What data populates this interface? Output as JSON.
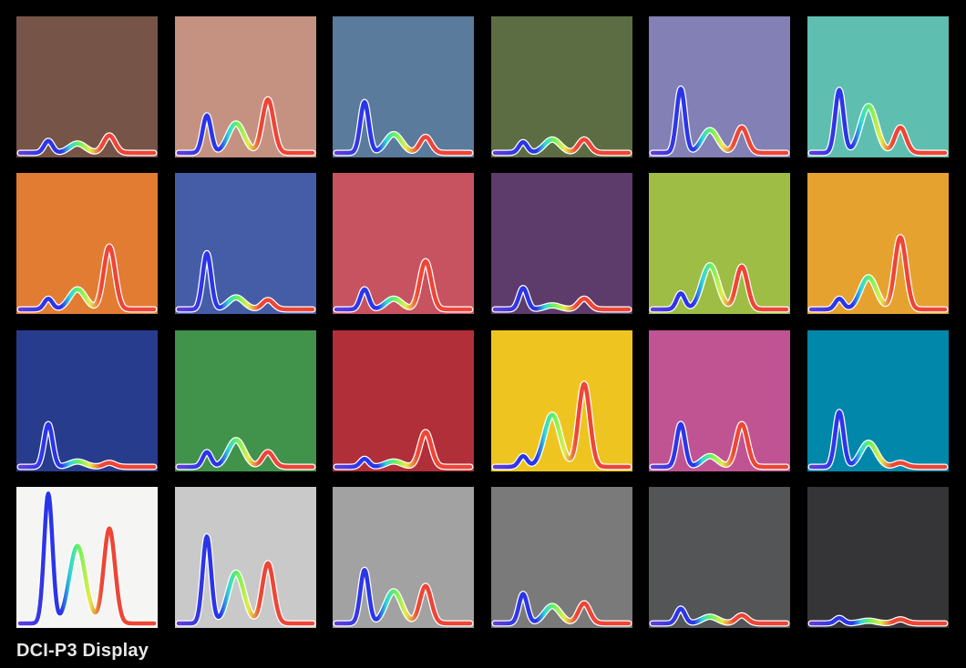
{
  "caption": "DCI-P3 Display",
  "spectrum_colors": {
    "blue": "#2b35e8",
    "cyan": "#2fd8d8",
    "green": "#66f25a",
    "yellow": "#e6ec4a",
    "red": "#ee4536",
    "outline": "#ffffff"
  },
  "swatches": [
    {
      "color": "#765447",
      "peaks": {
        "blue": 0.09,
        "green": 0.07,
        "red": 0.13
      }
    },
    {
      "color": "#c59281",
      "peaks": {
        "blue": 0.28,
        "green": 0.22,
        "red": 0.4
      }
    },
    {
      "color": "#5a7b9b",
      "peaks": {
        "blue": 0.38,
        "green": 0.14,
        "red": 0.12
      }
    },
    {
      "color": "#5c6d43",
      "peaks": {
        "blue": 0.08,
        "green": 0.1,
        "red": 0.1
      }
    },
    {
      "color": "#8280b4",
      "peaks": {
        "blue": 0.48,
        "green": 0.17,
        "red": 0.19
      }
    },
    {
      "color": "#5ebfb0",
      "peaks": {
        "blue": 0.47,
        "green": 0.35,
        "red": 0.19
      }
    },
    {
      "color": "#e27c33",
      "peaks": {
        "blue": 0.08,
        "green": 0.15,
        "red": 0.47
      }
    },
    {
      "color": "#455ca7",
      "peaks": {
        "blue": 0.42,
        "green": 0.09,
        "red": 0.07
      }
    },
    {
      "color": "#c75361",
      "peaks": {
        "blue": 0.15,
        "green": 0.08,
        "red": 0.36
      }
    },
    {
      "color": "#5d3b6a",
      "peaks": {
        "blue": 0.16,
        "green": 0.03,
        "red": 0.08
      }
    },
    {
      "color": "#9ebd45",
      "peaks": {
        "blue": 0.12,
        "green": 0.33,
        "red": 0.32
      }
    },
    {
      "color": "#e6a22f",
      "peaks": {
        "blue": 0.08,
        "green": 0.24,
        "red": 0.54
      }
    },
    {
      "color": "#283c8e",
      "peaks": {
        "blue": 0.32,
        "green": 0.04,
        "red": 0.03
      }
    },
    {
      "color": "#41924b",
      "peaks": {
        "blue": 0.11,
        "green": 0.2,
        "red": 0.11
      }
    },
    {
      "color": "#b12f39",
      "peaks": {
        "blue": 0.06,
        "green": 0.04,
        "red": 0.26
      }
    },
    {
      "color": "#eec520",
      "peaks": {
        "blue": 0.08,
        "green": 0.39,
        "red": 0.62
      }
    },
    {
      "color": "#c05493",
      "peaks": {
        "blue": 0.32,
        "green": 0.08,
        "red": 0.32
      }
    },
    {
      "color": "#0187aa",
      "peaks": {
        "blue": 0.41,
        "green": 0.18,
        "red": 0.03
      }
    },
    {
      "color": "#f5f5f3",
      "peaks": {
        "blue": 0.97,
        "green": 0.58,
        "red": 0.71
      }
    },
    {
      "color": "#c8c9c8",
      "peaks": {
        "blue": 0.65,
        "green": 0.38,
        "red": 0.45
      }
    },
    {
      "color": "#a1a2a1",
      "peaks": {
        "blue": 0.4,
        "green": 0.24,
        "red": 0.28
      }
    },
    {
      "color": "#7a7a7a",
      "peaks": {
        "blue": 0.22,
        "green": 0.13,
        "red": 0.15
      }
    },
    {
      "color": "#545556",
      "peaks": {
        "blue": 0.11,
        "green": 0.05,
        "red": 0.06
      }
    },
    {
      "color": "#353537",
      "peaks": {
        "blue": 0.04,
        "green": 0.02,
        "red": 0.03
      }
    }
  ]
}
